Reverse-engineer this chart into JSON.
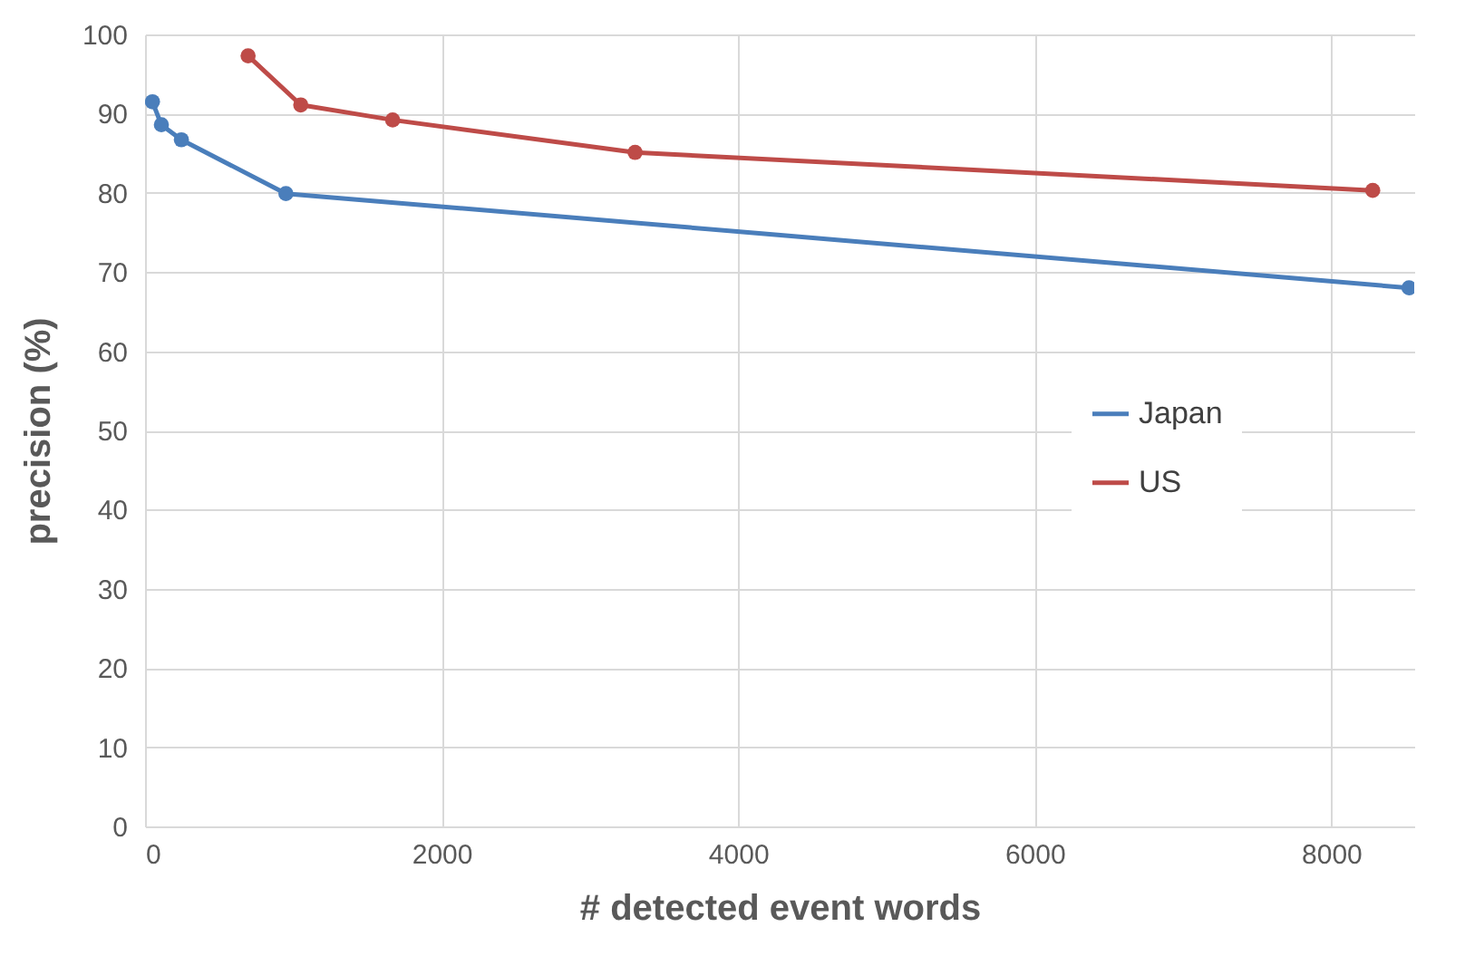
{
  "chart_data": {
    "type": "line",
    "xlabel": "# detected event words",
    "ylabel": "precision (%)",
    "xlim": [
      0,
      8560
    ],
    "xticks": [
      0,
      2000,
      4000,
      6000,
      8000
    ],
    "ylim": [
      0,
      100
    ],
    "yticks": [
      0,
      10,
      20,
      30,
      40,
      50,
      60,
      70,
      80,
      90,
      100
    ],
    "grid": true,
    "legend": "right",
    "marker": "circle",
    "line_style": "solid",
    "series": [
      {
        "name": "Japan",
        "color": "#4a7ebb",
        "x": [
          50,
          110,
          245,
          950,
          8525
        ],
        "values": [
          91.5,
          88.6,
          86.7,
          79.9,
          68.0
        ]
      },
      {
        "name": "US",
        "color": "#be4b48",
        "x": [
          695,
          1050,
          1670,
          3305,
          8280
        ],
        "values": [
          97.3,
          91.1,
          89.2,
          85.1,
          80.3
        ]
      }
    ]
  }
}
